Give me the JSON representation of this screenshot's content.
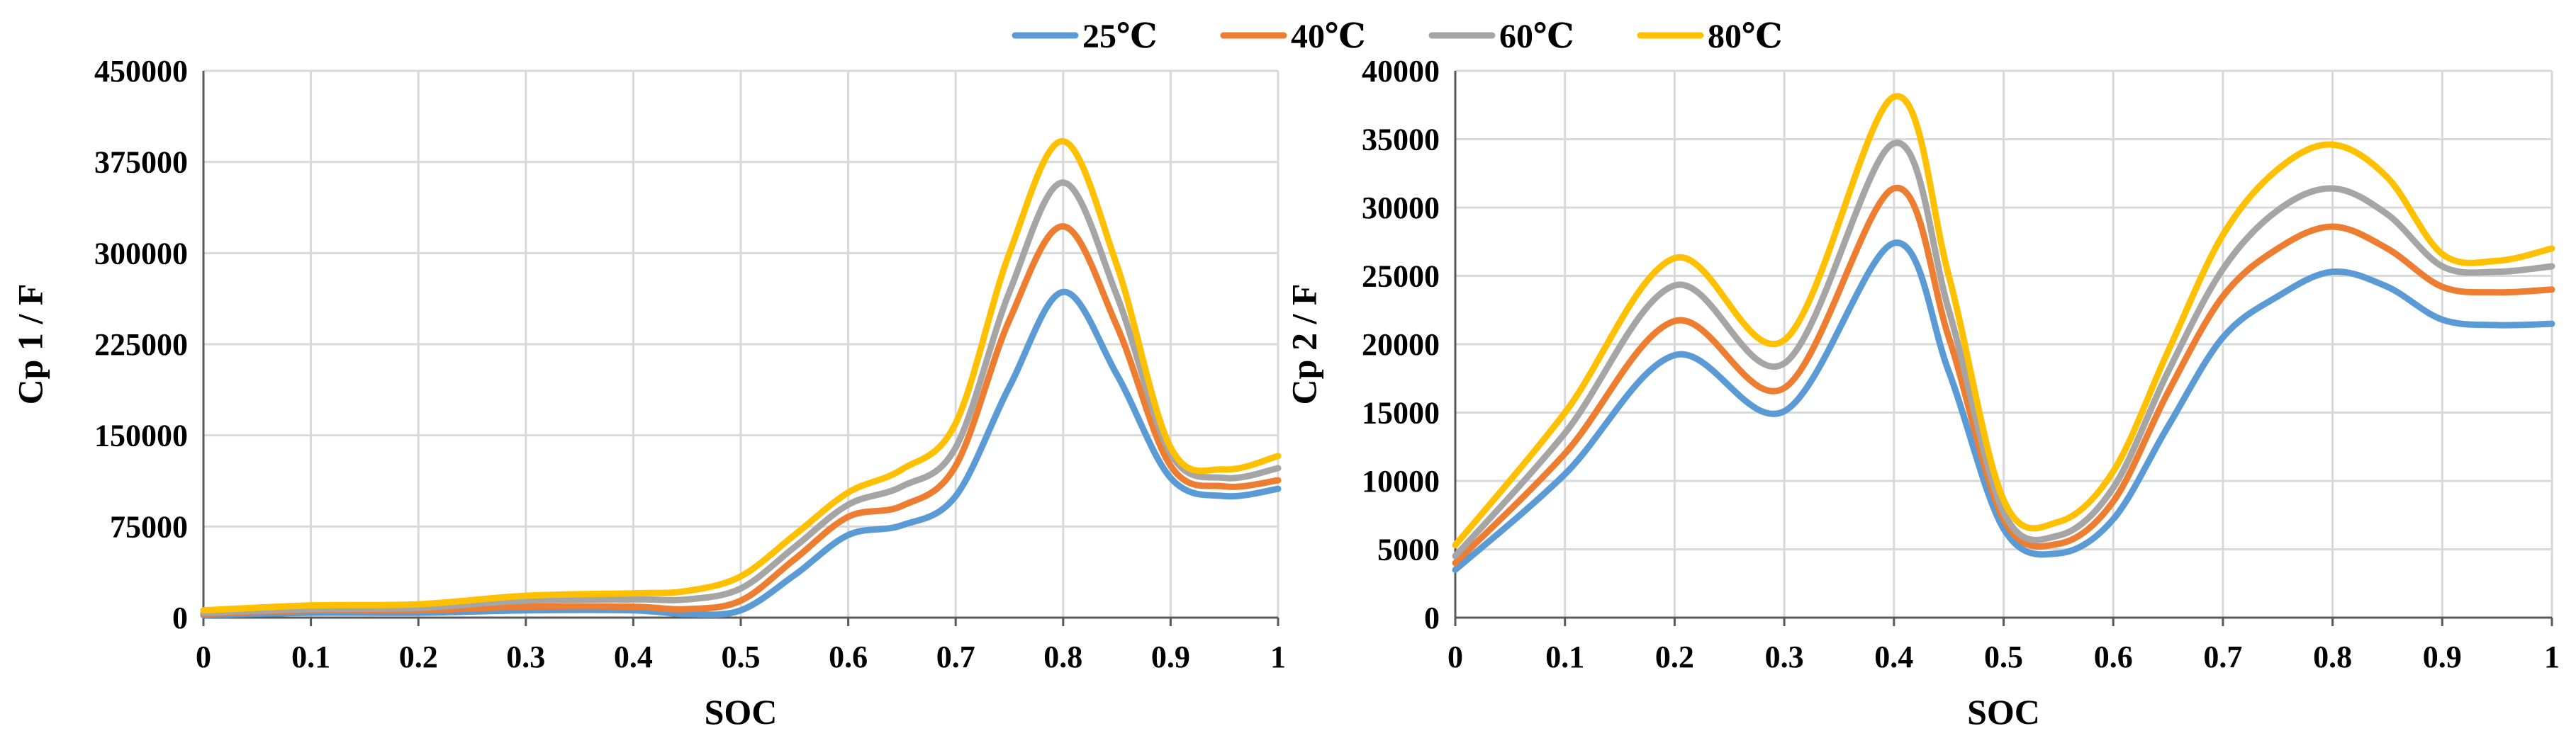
{
  "legend": {
    "placement": "top-center",
    "entries": [
      {
        "name": "25℃",
        "color": "#5b9bd5"
      },
      {
        "name": "40℃",
        "color": "#ed7d31"
      },
      {
        "name": "60℃",
        "color": "#a5a5a5"
      },
      {
        "name": "80℃",
        "color": "#ffc000"
      }
    ]
  },
  "chart_data": [
    {
      "type": "line",
      "title": "",
      "xlabel": "SOC",
      "ylabel": "Cp 1 / F",
      "xlim": [
        0,
        1
      ],
      "ylim": [
        0,
        450000
      ],
      "grid": true,
      "x_ticks": [
        "0",
        "0.1",
        "0.2",
        "0.3",
        "0.4",
        "0.5",
        "0.6",
        "0.7",
        "0.8",
        "0.9",
        "1"
      ],
      "y_ticks": [
        "0",
        "75000",
        "150000",
        "225000",
        "300000",
        "375000",
        "450000"
      ],
      "x": [
        0,
        0.1,
        0.2,
        0.3,
        0.4,
        0.45,
        0.5,
        0.55,
        0.6,
        0.65,
        0.7,
        0.75,
        0.8,
        0.85,
        0.9,
        0.95,
        1
      ],
      "series": [
        {
          "name": "25℃",
          "color": "#5b9bd5",
          "values": [
            2000,
            4000,
            4000,
            6000,
            6000,
            3000,
            6000,
            35000,
            68000,
            76000,
            100000,
            190000,
            268000,
            200000,
            115000,
            100000,
            106000
          ]
        },
        {
          "name": "40℃",
          "color": "#ed7d31",
          "values": [
            3000,
            6000,
            6000,
            9000,
            9000,
            7000,
            14000,
            48000,
            83000,
            92000,
            125000,
            245000,
            322000,
            240000,
            125000,
            108000,
            113000
          ]
        },
        {
          "name": "60℃",
          "color": "#a5a5a5",
          "values": [
            4000,
            7000,
            8000,
            14000,
            15000,
            15000,
            24000,
            58000,
            93000,
            108000,
            140000,
            268000,
            358000,
            265000,
            135000,
            115000,
            123000
          ]
        },
        {
          "name": "80℃",
          "color": "#ffc000",
          "values": [
            6000,
            10000,
            11000,
            18000,
            20000,
            22000,
            34000,
            68000,
            103000,
            122000,
            160000,
            300000,
            392000,
            290000,
            140000,
            122000,
            133000
          ]
        }
      ]
    },
    {
      "type": "line",
      "title": "",
      "xlabel": "SOC",
      "ylabel": "Cp 2 / F",
      "xlim": [
        0,
        1
      ],
      "ylim": [
        0,
        40000
      ],
      "grid": true,
      "x_ticks": [
        "0",
        "0.1",
        "0.2",
        "0.3",
        "0.4",
        "0.5",
        "0.6",
        "0.7",
        "0.8",
        "0.9",
        "1"
      ],
      "y_ticks": [
        "0",
        "5000",
        "10000",
        "15000",
        "20000",
        "25000",
        "30000",
        "35000",
        "40000"
      ],
      "x": [
        0,
        0.1,
        0.2,
        0.3,
        0.4,
        0.45,
        0.5,
        0.55,
        0.6,
        0.65,
        0.7,
        0.75,
        0.8,
        0.85,
        0.9,
        0.95,
        1
      ],
      "series": [
        {
          "name": "25℃",
          "color": "#5b9bd5",
          "values": [
            3500,
            10500,
            19200,
            15100,
            27400,
            18000,
            6500,
            4700,
            7200,
            14000,
            20500,
            23500,
            25300,
            24200,
            21800,
            21400,
            21500
          ]
        },
        {
          "name": "40℃",
          "color": "#ed7d31",
          "values": [
            4000,
            12000,
            21700,
            16800,
            31400,
            20500,
            7200,
            5400,
            8500,
            16500,
            23500,
            27000,
            28600,
            27000,
            24200,
            23800,
            24000
          ]
        },
        {
          "name": "60℃",
          "color": "#a5a5a5",
          "values": [
            4500,
            13500,
            24300,
            18600,
            34700,
            22500,
            7700,
            6000,
            9500,
            18000,
            25500,
            29800,
            31400,
            29500,
            25700,
            25300,
            25700
          ]
        },
        {
          "name": "80℃",
          "color": "#ffc000",
          "values": [
            5300,
            15000,
            26300,
            20300,
            38100,
            25000,
            8600,
            7000,
            10700,
            19500,
            28000,
            32800,
            34600,
            32200,
            26600,
            26100,
            27000
          ]
        }
      ]
    }
  ]
}
